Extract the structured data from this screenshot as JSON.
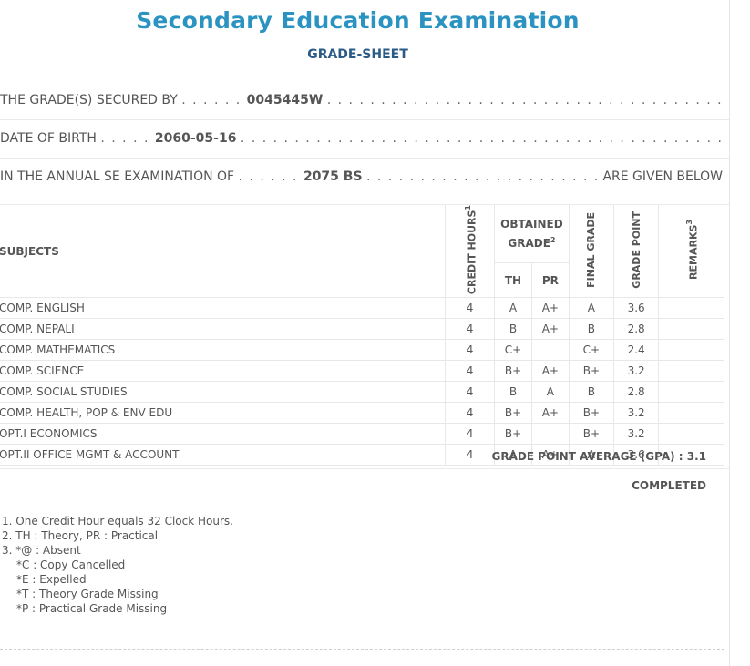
{
  "header": {
    "title": "Secondary Education Examination",
    "subtitle": "GRADE-SHEET"
  },
  "info": {
    "secured_by_label": "THE GRADE(S) SECURED BY",
    "secured_by_value": "0045445W",
    "dob_label": "DATE OF BIRTH",
    "dob_value": "2060-05-16",
    "exam_label": "IN THE ANNUAL SE EXAMINATION OF",
    "exam_value": "2075 BS",
    "exam_suffix": "ARE GIVEN BELOW"
  },
  "table": {
    "headers": {
      "subjects": "SUBJECTS",
      "credit_hours": "CREDIT HOURS",
      "credit_hours_sup": "1",
      "obtained_grade": "OBTAINED GRADE",
      "obtained_grade_sup": "2",
      "th": "TH",
      "pr": "PR",
      "final_grade": "FINAL GRADE",
      "grade_point": "GRADE POINT",
      "remarks": "REMARKS",
      "remarks_sup": "3"
    },
    "rows": [
      {
        "subject": "COMP. ENGLISH",
        "credit": "4",
        "th": "A",
        "pr": "A+",
        "final": "A",
        "gp": "3.6",
        "remarks": ""
      },
      {
        "subject": "COMP. NEPALI",
        "credit": "4",
        "th": "B",
        "pr": "A+",
        "final": "B",
        "gp": "2.8",
        "remarks": ""
      },
      {
        "subject": "COMP. MATHEMATICS",
        "credit": "4",
        "th": "C+",
        "pr": "",
        "final": "C+",
        "gp": "2.4",
        "remarks": ""
      },
      {
        "subject": "COMP. SCIENCE",
        "credit": "4",
        "th": "B+",
        "pr": "A+",
        "final": "B+",
        "gp": "3.2",
        "remarks": ""
      },
      {
        "subject": "COMP. SOCIAL STUDIES",
        "credit": "4",
        "th": "B",
        "pr": "A",
        "final": "B",
        "gp": "2.8",
        "remarks": ""
      },
      {
        "subject": "COMP. HEALTH, POP & ENV EDU",
        "credit": "4",
        "th": "B+",
        "pr": "A+",
        "final": "B+",
        "gp": "3.2",
        "remarks": ""
      },
      {
        "subject": "OPT.I ECONOMICS",
        "credit": "4",
        "th": "B+",
        "pr": "",
        "final": "B+",
        "gp": "3.2",
        "remarks": ""
      },
      {
        "subject": "OPT.II OFFICE MGMT & ACCOUNT",
        "credit": "4",
        "th": "A",
        "pr": "A+",
        "final": "A",
        "gp": "3.6",
        "remarks": ""
      }
    ]
  },
  "summary": {
    "gpa_text": "GRADE POINT AVERAGE (GPA) : 3.1",
    "status": "COMPLETED"
  },
  "notes": [
    "1. One Credit Hour equals 32 Clock Hours.",
    "2. TH : Theory, PR : Practical",
    "3. *@ : Absent",
    "*C : Copy Cancelled",
    "*E : Expelled",
    "*T : Theory Grade Missing",
    "*P : Practical Grade Missing"
  ]
}
